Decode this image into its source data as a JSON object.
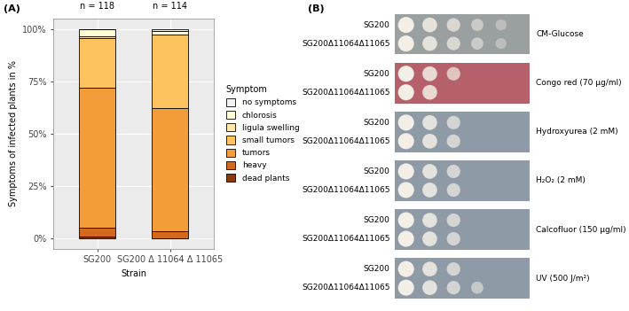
{
  "chart_data": {
    "type": "bar",
    "title": "(A)",
    "x_label": "Strain",
    "y_label": "Symptoms of infected plants in %",
    "categories": [
      "SG200",
      "SG200 Δ 11064 Δ 11065"
    ],
    "annotations": [
      "n = 118",
      "n = 114"
    ],
    "stacked": true,
    "grid": true,
    "legend": "right",
    "legend_title": "Symptom",
    "ylim": [
      -5,
      105
    ],
    "yticks": [
      {
        "value": 0,
        "label": "0%"
      },
      {
        "value": 25,
        "label": "25%"
      },
      {
        "value": 50,
        "label": "50%"
      },
      {
        "value": 75,
        "label": "75%"
      },
      {
        "value": 100,
        "label": "100%"
      }
    ],
    "series": [
      {
        "name": "no symptoms",
        "color": "#f2f2f2",
        "values": [
          0,
          0.9
        ]
      },
      {
        "name": "chlorosis",
        "color": "#fffdd8",
        "values": [
          3.5,
          1.8
        ]
      },
      {
        "name": "ligula swelling",
        "color": "#fee7a8",
        "values": [
          0.8,
          0
        ]
      },
      {
        "name": "small tumors",
        "color": "#fdc35e",
        "values": [
          23.7,
          35.1
        ]
      },
      {
        "name": "tumors",
        "color": "#f29d3a",
        "values": [
          67.0,
          58.7
        ]
      },
      {
        "name": "heavy",
        "color": "#d2691e",
        "values": [
          4.2,
          3.5
        ]
      },
      {
        "name": "dead plants",
        "color": "#8b3a0e",
        "values": [
          0.8,
          0
        ]
      }
    ]
  },
  "panel_b": {
    "title": "(B)",
    "strains": [
      "SG200",
      "SG200Δ11064Δ11065"
    ],
    "conditions": [
      {
        "name": "CM-Glucose",
        "color": "#9a9fa0",
        "spots": [
          5,
          5
        ]
      },
      {
        "name": "Congo red (70 µg/ml)",
        "color": "#b5606a",
        "spots": [
          3,
          2
        ]
      },
      {
        "name": "Hydroxyurea (2 mM)",
        "color": "#8e9aa6",
        "spots": [
          3,
          3
        ]
      },
      {
        "name": "H₂O₂ (2 mM)",
        "color": "#8e9aa6",
        "spots": [
          3,
          3
        ]
      },
      {
        "name": "Calcofluor (150 µg/ml)",
        "color": "#8e9aa6",
        "spots": [
          3,
          3
        ]
      },
      {
        "name": "UV (500 J/m²)",
        "color": "#8e9aa6",
        "spots": [
          3,
          4
        ]
      }
    ]
  }
}
